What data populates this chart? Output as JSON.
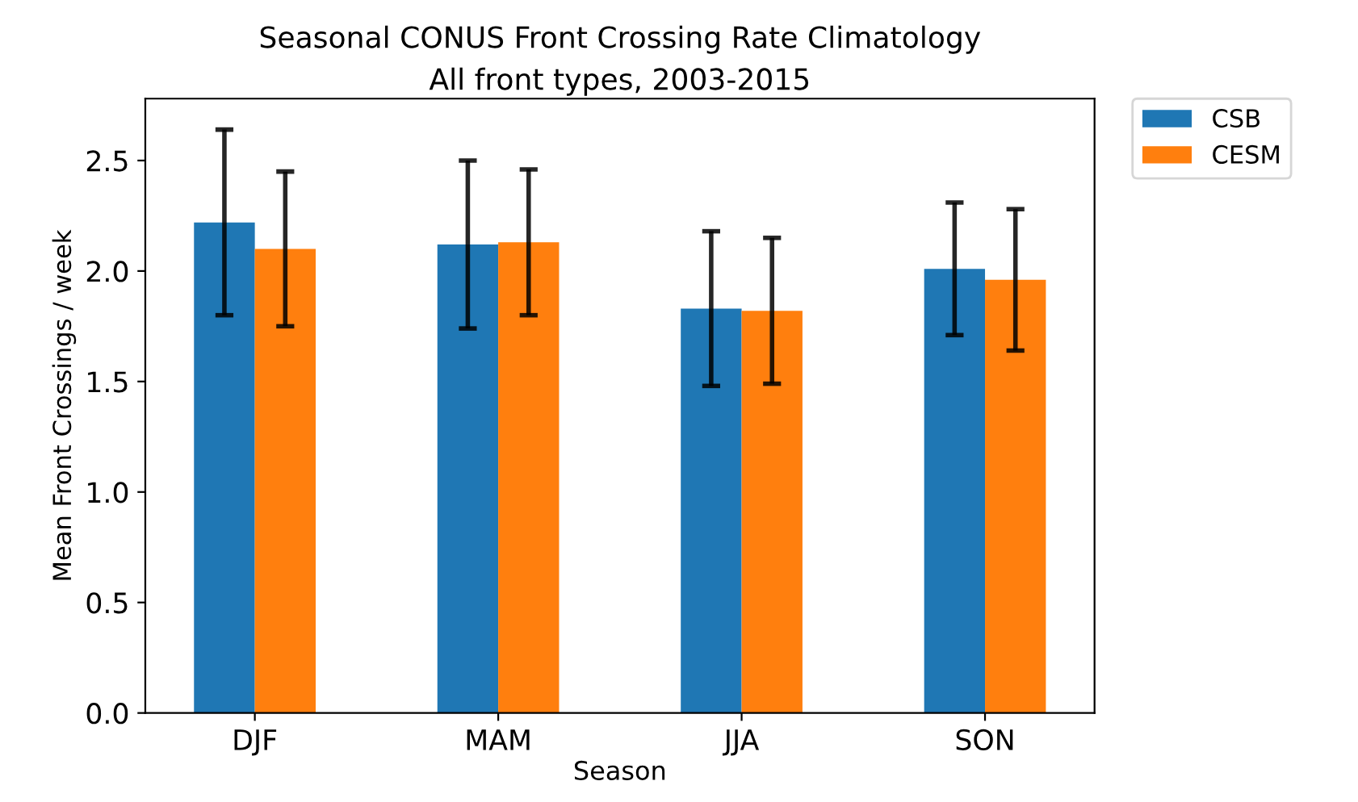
{
  "chart_data": {
    "type": "bar",
    "title": "Seasonal CONUS Front Crossing Rate Climatology",
    "subtitle": "All front types, 2003-2015",
    "xlabel": "Season",
    "ylabel": "Mean Front Crossings / week",
    "categories": [
      "DJF",
      "MAM",
      "JJA",
      "SON"
    ],
    "series": [
      {
        "name": "CSB",
        "color": "#1f77b4",
        "values": [
          2.22,
          2.12,
          1.83,
          2.01
        ],
        "errors": [
          0.42,
          0.38,
          0.35,
          0.3
        ]
      },
      {
        "name": "CESM",
        "color": "#ff7f0e",
        "values": [
          2.1,
          2.13,
          1.82,
          1.96
        ],
        "errors": [
          0.35,
          0.33,
          0.33,
          0.32
        ]
      }
    ],
    "ylim": [
      0,
      2.78
    ],
    "yticks": [
      {
        "value": 0,
        "label": "0.0"
      },
      0.5,
      {
        "value": 1,
        "label": "1.0"
      },
      1.5,
      {
        "value": 2,
        "label": "2.0"
      },
      2.5
    ],
    "grid": false,
    "legend": "top right"
  }
}
